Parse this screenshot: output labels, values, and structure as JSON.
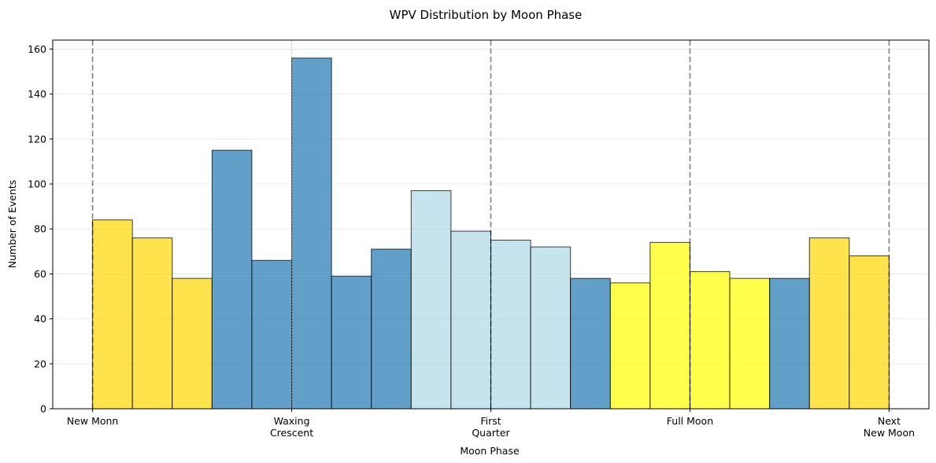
{
  "chart_data": {
    "type": "bar",
    "title": "WPV Distribution by Moon Phase",
    "xlabel": "Moon Phase",
    "ylabel": "Number of Events",
    "ylim": [
      0,
      164
    ],
    "yticks": [
      0,
      20,
      40,
      60,
      80,
      100,
      120,
      140,
      160
    ],
    "xlim": [
      -0.2,
      4.2
    ],
    "phase_ticks": [
      {
        "position": 0,
        "label": [
          "New Monn"
        ],
        "line_style": "dashed-dark"
      },
      {
        "position": 1,
        "label": [
          "Waxing",
          "Crescent"
        ],
        "line_style": "dotted-light"
      },
      {
        "position": 2,
        "label": [
          "First",
          "Quarter"
        ],
        "line_style": "dashed-dark"
      },
      {
        "position": 3,
        "label": [
          "Full Moon"
        ],
        "line_style": "dashed-dark"
      },
      {
        "position": 4,
        "label": [
          "Next",
          "New Moon"
        ],
        "line_style": "dashed-dark"
      }
    ],
    "bin_width": 0.2,
    "bins_start": 0,
    "values": [
      84,
      76,
      58,
      115,
      66,
      156,
      59,
      71,
      97,
      79,
      75,
      72,
      58,
      56,
      74,
      61,
      58,
      58,
      76,
      68
    ],
    "bar_colors": [
      "#FFD700",
      "#FFD700",
      "#FFD700",
      "#1F77B4",
      "#1F77B4",
      "#1F77B4",
      "#1F77B4",
      "#1F77B4",
      "#ADD8E6",
      "#ADD8E6",
      "#ADD8E6",
      "#ADD8E6",
      "#1F77B4",
      "#FFFF00",
      "#FFFF00",
      "#FFFF00",
      "#FFFF00",
      "#1F77B4",
      "#FFD700",
      "#FFD700"
    ],
    "bar_opacity": 0.7,
    "grid": {
      "y": true,
      "x": false
    },
    "legend": "none"
  }
}
